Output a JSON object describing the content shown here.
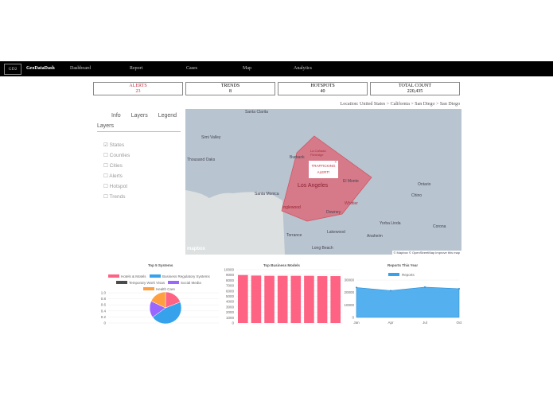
{
  "nav": {
    "logo": "GD2",
    "brand": "GeoDataDash",
    "items": [
      "Dashboard",
      "Report",
      "Cases",
      "Map",
      "Analytics"
    ]
  },
  "stats": [
    {
      "label": "ALERTS",
      "value": "23"
    },
    {
      "label": "TRENDS",
      "value": "8"
    },
    {
      "label": "HOTSPOTS",
      "value": "40"
    },
    {
      "label": "TOTAL COUNT",
      "value": "220,435"
    }
  ],
  "location": "Location: United States > California > San Diego > San Diego",
  "panel": {
    "tabs": [
      "Info",
      "Layers",
      "Legend"
    ],
    "heading": "Layers",
    "layers": [
      {
        "label": "States",
        "checked": true
      },
      {
        "label": "Counties",
        "checked": false
      },
      {
        "label": "Cities",
        "checked": false
      },
      {
        "label": "Alerts",
        "checked": false
      },
      {
        "label": "Hotspot",
        "checked": false
      },
      {
        "label": "Trends",
        "checked": false
      }
    ]
  },
  "map": {
    "labels": [
      "Santa Clarita",
      "Simi Valley",
      "Thousand Oaks",
      "Burbank",
      "La Cañada Flintridge",
      "Los Angeles",
      "El Monte",
      "Santa Monica",
      "Inglewood",
      "Downey",
      "Whittier",
      "Ontario",
      "Chino",
      "Yorba Linda",
      "Corona",
      "Torrance",
      "Lakewood",
      "Anaheim",
      "Long Beach"
    ],
    "popup": "TRAFFICKING ALERT!",
    "attribution": "© Mapbox © OpenStreetMap Improve this map",
    "logo": "mapbox",
    "alert_color": "#e06070"
  },
  "chart_data": [
    {
      "type": "pie",
      "title": "Top 5 Systems",
      "categories": [
        "Hotels & Motels",
        "Business Regulatory Systems",
        "Temporary Work Visas",
        "Social Media",
        "Health Care"
      ],
      "values": [
        19,
        46,
        0,
        17,
        18
      ],
      "colors": [
        "#ff6384",
        "#36a2eb",
        "#4b4b4b",
        "#9966ff",
        "#ff9f40"
      ],
      "yticks": [
        "1.0",
        "0.8",
        "0.6",
        "0.4",
        "0.2",
        "0"
      ]
    },
    {
      "type": "bar",
      "title": "Top Business Models",
      "values": [
        9000,
        8900,
        8850,
        8850,
        8850,
        8850,
        8800,
        8800
      ],
      "ylim": [
        0,
        10000
      ],
      "color": "#ff6384"
    },
    {
      "type": "area",
      "title": "Reports This Year",
      "legend": "Reports",
      "categories": [
        "Jan",
        "Apr",
        "Jul",
        "Oct"
      ],
      "values": [
        24000,
        21500,
        24300,
        23000
      ],
      "ylim": [
        0,
        30000
      ],
      "color": "#36a2eb"
    }
  ]
}
